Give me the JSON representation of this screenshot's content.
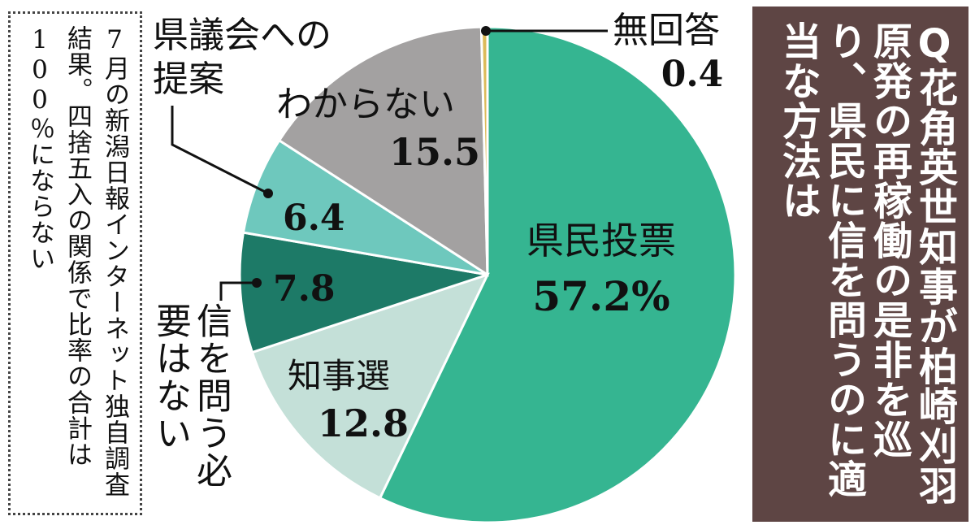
{
  "note": "7月の新潟日報インターネット独自調査結果。四捨五入の関係で比率の合計は100％にならない",
  "question": "Q花角英世知事が柏崎刈羽原発の再稼働の是非を巡り、県民に信を問うのに適当な方法は",
  "chart_data": {
    "type": "pie",
    "title": "",
    "slices": [
      {
        "label": "県民投票",
        "value": 57.2,
        "display": "57.2%",
        "color": "#35b591"
      },
      {
        "label": "知事選",
        "value": 12.8,
        "display": "12.8",
        "color": "#c4e0d8"
      },
      {
        "label": "信を問う必要はない",
        "value": 7.8,
        "display": "7.8",
        "color": "#1d7a67"
      },
      {
        "label": "県議会への提案",
        "value": 6.4,
        "display": "6.4",
        "color": "#6ec8bd"
      },
      {
        "label": "わからない",
        "value": 15.5,
        "display": "15.5",
        "color": "#a3a1a1"
      },
      {
        "label": "無回答",
        "value": 0.4,
        "display": "0.4",
        "color": "#dcbb5a"
      }
    ],
    "start": "top",
    "direction": "clockwise"
  }
}
